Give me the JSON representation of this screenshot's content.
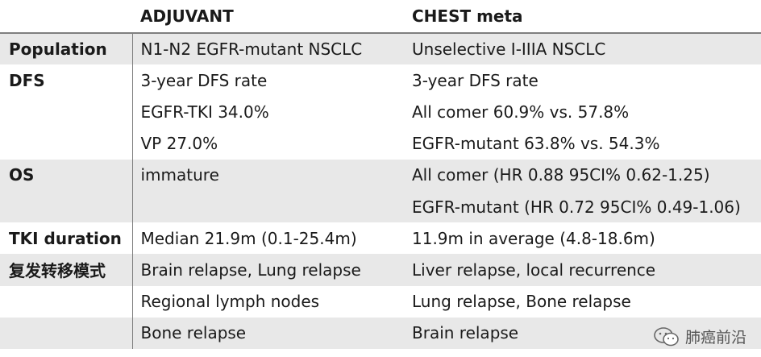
{
  "table": {
    "headers": [
      "",
      "ADJUVANT",
      "CHEST meta"
    ],
    "rows": [
      {
        "label": "Population",
        "adjuvant": "N1-N2 EGFR-mutant NSCLC",
        "chest": "Unselective I-IIIA NSCLC",
        "shade": true
      },
      {
        "label": "DFS",
        "adjuvant": "3-year DFS rate",
        "chest": "3-year DFS rate",
        "shade": false
      },
      {
        "label": "",
        "adjuvant": "EGFR-TKI 34.0%",
        "chest": "All comer 60.9% vs. 57.8%",
        "shade": false
      },
      {
        "label": "",
        "adjuvant": "VP 27.0%",
        "chest": "EGFR-mutant 63.8% vs. 54.3%",
        "shade": false
      },
      {
        "label": "OS",
        "adjuvant": "immature",
        "chest": "All comer (HR 0.88 95CI% 0.62-1.25)",
        "shade": true
      },
      {
        "label": "",
        "adjuvant": "",
        "chest": "EGFR-mutant (HR 0.72 95CI% 0.49-1.06)",
        "shade": true
      },
      {
        "label": "TKI duration",
        "adjuvant": "Median 21.9m (0.1-25.4m)",
        "chest": "11.9m in average (4.8-18.6m)",
        "shade": false
      },
      {
        "label": "复发转移模式",
        "adjuvant": "Brain relapse, Lung relapse",
        "chest": "Liver relapse, local recurrence",
        "shade": true
      },
      {
        "label": "",
        "adjuvant": "Regional lymph nodes",
        "chest": "Lung relapse, Bone relapse",
        "shade": false
      },
      {
        "label": "",
        "adjuvant": "Bone relapse",
        "chest": "Brain relapse",
        "shade": true
      }
    ]
  },
  "watermark": {
    "text": "肺癌前沿",
    "icon": "wechat-icon"
  }
}
